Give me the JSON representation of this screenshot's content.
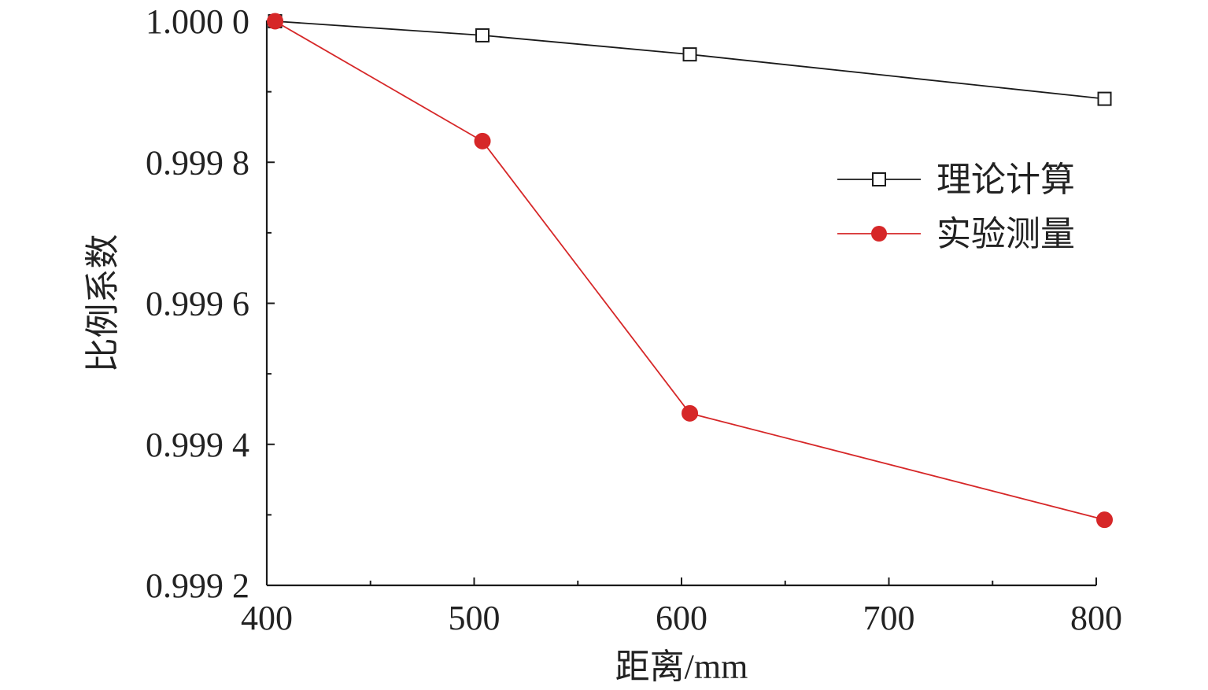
{
  "chart_data": {
    "type": "line",
    "title": "",
    "xlabel": "距离/mm",
    "ylabel": "比例系数",
    "xlim": [
      400,
      800
    ],
    "ylim": [
      0.9992,
      1.0
    ],
    "x_ticks": [
      400,
      500,
      600,
      700,
      800
    ],
    "x_tick_labels": [
      "400",
      "500",
      "600",
      "700",
      "800"
    ],
    "y_ticks": [
      0.9992,
      0.9994,
      0.9996,
      0.9998,
      1.0
    ],
    "y_tick_labels": [
      "0.999 2",
      "0.999 4",
      "0.999 6",
      "0.999 8",
      "1.000 0"
    ],
    "grid": false,
    "legend_position": "top-right",
    "series": [
      {
        "name": "理论计算",
        "x": [
          404,
          504,
          604,
          804
        ],
        "values": [
          1.0,
          0.99998,
          0.999953,
          0.99989
        ],
        "color": "#1a1a1a",
        "marker": "open-square"
      },
      {
        "name": "实验测量",
        "x": [
          404,
          504,
          604,
          804
        ],
        "values": [
          1.0,
          0.99983,
          0.999444,
          0.999293
        ],
        "color": "#d62728",
        "marker": "filled-circle"
      }
    ]
  }
}
